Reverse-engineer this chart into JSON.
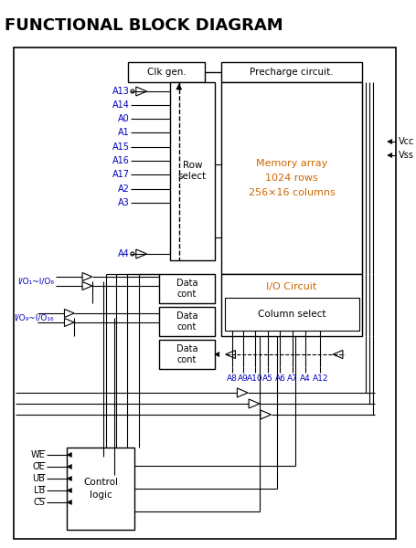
{
  "title": "FUNCTIONAL BLOCK DIAGRAM",
  "title_color": "#000000",
  "title_fontsize": 13,
  "bg_color": "#ffffff",
  "line_color": "#000000",
  "orange_color": "#CC6600",
  "blue_color": "#0000BB",
  "fig_width": 4.55,
  "fig_height": 6.0,
  "dpi": 100,
  "address_labels": [
    "A13",
    "A14",
    "A0",
    "A1",
    "A15",
    "A16",
    "A17",
    "A2",
    "A3",
    "A4"
  ],
  "io_label_1": "I/O₁~I/O₈",
  "io_label_2": "I/O₉~I/O₁₆",
  "col_addr_labels": [
    "A8",
    "A9",
    "A10",
    "A5",
    "A6",
    "A7",
    "A4",
    "A12"
  ],
  "control_inputs": [
    "WE",
    "OE",
    "UB",
    "LB",
    "CS"
  ]
}
